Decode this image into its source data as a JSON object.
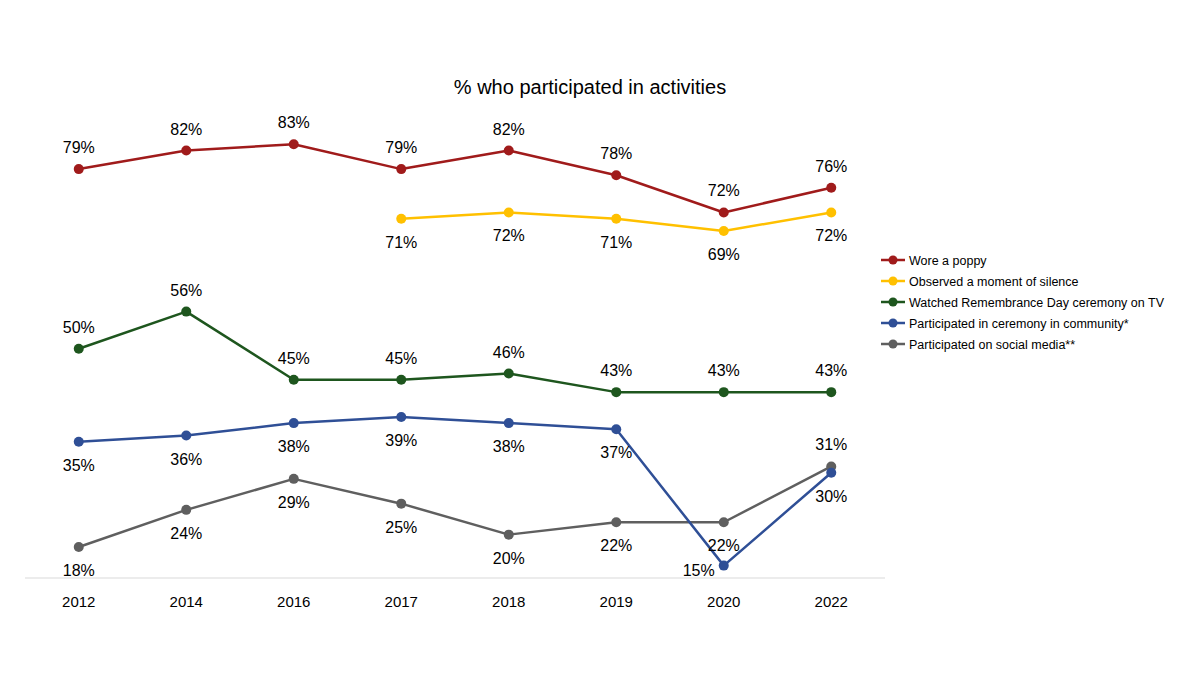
{
  "chart_data": {
    "type": "line",
    "title": "% who participated in activities",
    "categories": [
      "2012",
      "2014",
      "2016",
      "2017",
      "2018",
      "2019",
      "2020",
      "2022"
    ],
    "ylim": [
      13,
      100
    ],
    "grid": false,
    "legend": "right",
    "data_labels": true,
    "tick_labels": "x",
    "marker": "circle",
    "series": [
      {
        "name": "Wore a poppy",
        "color": "#A01B1B",
        "values": [
          79,
          82,
          83,
          79,
          82,
          78,
          72,
          76
        ],
        "value_labels": [
          "79%",
          "82%",
          "83%",
          "79%",
          "82%",
          "78%",
          "72%",
          "76%"
        ]
      },
      {
        "name": "Observed a moment of silence",
        "color": "#FFC000",
        "values": [
          null,
          null,
          null,
          71,
          72,
          71,
          69,
          72
        ],
        "value_labels": [
          null,
          null,
          null,
          "71%",
          "72%",
          "71%",
          "69%",
          "72%"
        ]
      },
      {
        "name": "Watched Remembrance Day ceremony on TV",
        "color": "#1E561E",
        "values": [
          50,
          56,
          45,
          45,
          46,
          43,
          43,
          43
        ],
        "value_labels": [
          "50%",
          "56%",
          "45%",
          "45%",
          "46%",
          "43%",
          "43%",
          "43%"
        ]
      },
      {
        "name": "Participated in ceremony in community*",
        "color": "#2F4F96",
        "values": [
          35,
          36,
          38,
          39,
          38,
          37,
          15,
          30
        ],
        "value_labels": [
          "35%",
          "36%",
          "38%",
          "39%",
          "38%",
          "37%",
          "15%",
          "30%"
        ]
      },
      {
        "name": "Participated on social media**",
        "color": "#5F5F5F",
        "values": [
          18,
          24,
          29,
          25,
          20,
          22,
          22,
          31
        ],
        "value_labels": [
          "18%",
          "24%",
          "29%",
          "25%",
          "20%",
          "22%",
          "22%",
          "31%"
        ]
      }
    ]
  }
}
